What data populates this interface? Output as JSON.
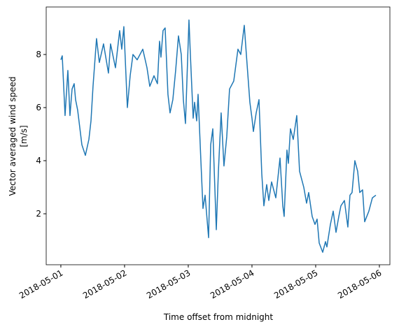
{
  "chart_data": {
    "type": "line",
    "xlabel": "Time offset from midnight",
    "ylabel": [
      "Vector averaged wind speed",
      "[m/s]"
    ],
    "x": [
      0,
      0.022,
      0.066,
      0.11,
      0.143,
      0.176,
      0.209,
      0.231,
      0.264,
      0.33,
      0.385,
      0.44,
      0.473,
      0.505,
      0.56,
      0.604,
      0.67,
      0.747,
      0.78,
      0.857,
      0.923,
      0.956,
      0.989,
      1.044,
      1.088,
      1.132,
      1.198,
      1.286,
      1.352,
      1.396,
      1.462,
      1.516,
      1.549,
      1.571,
      1.604,
      1.637,
      1.681,
      1.714,
      1.758,
      1.802,
      1.846,
      1.89,
      1.923,
      1.956,
      2.011,
      2.033,
      2.077,
      2.099,
      2.132,
      2.154,
      2.198,
      2.231,
      2.264,
      2.319,
      2.352,
      2.385,
      2.44,
      2.473,
      2.516,
      2.56,
      2.604,
      2.648,
      2.714,
      2.78,
      2.824,
      2.879,
      2.912,
      2.967,
      3.0,
      3.022,
      3.066,
      3.11,
      3.154,
      3.187,
      3.231,
      3.264,
      3.308,
      3.374,
      3.44,
      3.484,
      3.505,
      3.549,
      3.571,
      3.604,
      3.648,
      3.703,
      3.747,
      3.813,
      3.857,
      3.89,
      3.945,
      3.989,
      4.022,
      4.055,
      4.11,
      4.154,
      4.176,
      4.231,
      4.275,
      4.319,
      4.363,
      4.396,
      4.451,
      4.505,
      4.538,
      4.571,
      4.615,
      4.659,
      4.692,
      4.736,
      4.769,
      4.835,
      4.89,
      4.945
    ],
    "series": [
      {
        "color": "#1f77b4",
        "values": [
          7.8,
          7.95,
          5.7,
          7.4,
          5.7,
          6.7,
          6.9,
          6.3,
          5.9,
          4.6,
          4.2,
          4.8,
          5.5,
          6.8,
          8.6,
          7.7,
          8.4,
          7.3,
          8.4,
          7.5,
          8.9,
          8.2,
          9.05,
          6.0,
          7.2,
          8.0,
          7.8,
          8.2,
          7.5,
          6.8,
          7.2,
          6.9,
          8.5,
          7.9,
          8.9,
          9.0,
          6.5,
          5.8,
          6.3,
          7.4,
          8.7,
          8.0,
          6.3,
          5.4,
          9.3,
          8.0,
          5.6,
          6.2,
          5.5,
          6.5,
          4.0,
          2.2,
          2.7,
          1.1,
          4.6,
          5.2,
          1.4,
          3.6,
          5.8,
          3.8,
          4.9,
          6.7,
          7.0,
          8.2,
          8.0,
          9.1,
          8.0,
          6.2,
          5.6,
          5.1,
          5.8,
          6.3,
          3.5,
          2.3,
          3.1,
          2.5,
          3.2,
          2.6,
          4.1,
          2.3,
          1.9,
          4.4,
          3.9,
          5.2,
          4.8,
          5.7,
          3.6,
          3.0,
          2.4,
          2.8,
          1.9,
          1.6,
          1.8,
          0.9,
          0.55,
          0.95,
          0.75,
          1.6,
          2.1,
          1.3,
          1.9,
          2.3,
          2.5,
          1.5,
          2.7,
          2.8,
          4.0,
          3.6,
          2.8,
          2.9,
          1.7,
          2.1,
          2.6,
          2.7
        ]
      }
    ],
    "xlim": [
      -0.23,
      5.165
    ],
    "xticks": [
      {
        "value": 0,
        "label": "2018-05-01"
      },
      {
        "value": 1,
        "label": "2018-05-02"
      },
      {
        "value": 2,
        "label": "2018-05-03"
      },
      {
        "value": 3,
        "label": "2018-05-04"
      },
      {
        "value": 4,
        "label": "2018-05-05"
      },
      {
        "value": 5,
        "label": "2018-05-06"
      }
    ],
    "ylim": [
      0.08,
      9.79
    ],
    "yticks": [
      2,
      4,
      6,
      8
    ],
    "grid": false
  }
}
